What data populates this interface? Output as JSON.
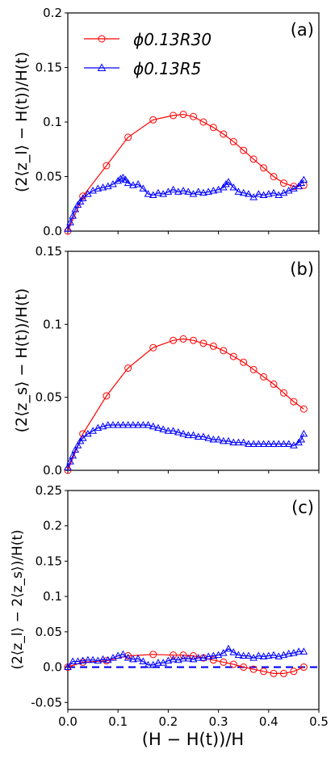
{
  "figure": {
    "xlabel": "(H − H(t))/H",
    "x_ticks": [
      "0.0",
      "0.1",
      "0.2",
      "0.3",
      "0.4",
      "0.5"
    ],
    "x_range": [
      0.0,
      0.5
    ]
  },
  "legend": {
    "series_1_label": "ϕ0.13R30",
    "series_2_label": "ϕ0.13R5",
    "series_1_color": "#ff0000",
    "series_2_color": "#0000ff"
  },
  "chart_data": [
    {
      "type": "line",
      "panel_label": "(a)",
      "ylabel": "(2⟨z_l⟩ − H(t))/H(t)",
      "xlim": [
        0.0,
        0.5
      ],
      "ylim": [
        0.0,
        0.2
      ],
      "y_ticks": [
        "0.0",
        "0.05",
        "0.1",
        "0.15",
        "0.2"
      ],
      "legend_position": "top-left",
      "series": [
        {
          "name": "ϕ0.13R30",
          "color": "#ff0000",
          "marker": "circle",
          "x": [
            0.0,
            0.03,
            0.077,
            0.12,
            0.17,
            0.21,
            0.23,
            0.25,
            0.27,
            0.29,
            0.31,
            0.33,
            0.35,
            0.37,
            0.39,
            0.41,
            0.43,
            0.45,
            0.47
          ],
          "y": [
            0.0,
            0.032,
            0.06,
            0.086,
            0.102,
            0.106,
            0.107,
            0.105,
            0.1,
            0.095,
            0.089,
            0.082,
            0.074,
            0.066,
            0.058,
            0.05,
            0.044,
            0.041,
            0.042
          ]
        },
        {
          "name": "ϕ0.13R5",
          "color": "#0000ff",
          "marker": "triangle",
          "x": [
            0.0,
            0.005,
            0.01,
            0.015,
            0.02,
            0.025,
            0.03,
            0.04,
            0.05,
            0.06,
            0.07,
            0.08,
            0.09,
            0.1,
            0.105,
            0.11,
            0.115,
            0.12,
            0.13,
            0.14,
            0.15,
            0.16,
            0.17,
            0.18,
            0.19,
            0.2,
            0.21,
            0.22,
            0.23,
            0.24,
            0.25,
            0.26,
            0.27,
            0.28,
            0.29,
            0.3,
            0.31,
            0.315,
            0.32,
            0.33,
            0.34,
            0.35,
            0.36,
            0.37,
            0.38,
            0.39,
            0.4,
            0.41,
            0.42,
            0.43,
            0.44,
            0.45,
            0.46,
            0.465,
            0.47
          ],
          "y": [
            0.002,
            0.008,
            0.014,
            0.02,
            0.024,
            0.027,
            0.03,
            0.034,
            0.037,
            0.039,
            0.04,
            0.041,
            0.043,
            0.046,
            0.048,
            0.049,
            0.047,
            0.044,
            0.042,
            0.043,
            0.039,
            0.034,
            0.033,
            0.035,
            0.034,
            0.036,
            0.038,
            0.036,
            0.037,
            0.036,
            0.034,
            0.036,
            0.035,
            0.036,
            0.037,
            0.038,
            0.04,
            0.043,
            0.045,
            0.04,
            0.036,
            0.035,
            0.034,
            0.031,
            0.034,
            0.033,
            0.034,
            0.035,
            0.033,
            0.035,
            0.037,
            0.039,
            0.041,
            0.044,
            0.047
          ]
        }
      ]
    },
    {
      "type": "line",
      "panel_label": "(b)",
      "ylabel": "(2⟨z_s⟩ − H(t))/H(t)",
      "xlim": [
        0.0,
        0.5
      ],
      "ylim": [
        0.0,
        0.15
      ],
      "y_ticks": [
        "0.0",
        "0.05",
        "0.1",
        "0.15"
      ],
      "series": [
        {
          "name": "ϕ0.13R30",
          "color": "#ff0000",
          "marker": "circle",
          "x": [
            0.0,
            0.03,
            0.077,
            0.12,
            0.17,
            0.21,
            0.23,
            0.25,
            0.27,
            0.29,
            0.31,
            0.33,
            0.35,
            0.37,
            0.39,
            0.41,
            0.43,
            0.45,
            0.47
          ],
          "y": [
            0.0,
            0.025,
            0.051,
            0.07,
            0.084,
            0.089,
            0.09,
            0.089,
            0.087,
            0.085,
            0.082,
            0.078,
            0.074,
            0.069,
            0.064,
            0.059,
            0.053,
            0.047,
            0.042
          ]
        },
        {
          "name": "ϕ0.13R5",
          "color": "#0000ff",
          "marker": "triangle",
          "x": [
            0.0,
            0.005,
            0.01,
            0.015,
            0.02,
            0.025,
            0.03,
            0.04,
            0.05,
            0.06,
            0.07,
            0.08,
            0.09,
            0.1,
            0.11,
            0.12,
            0.13,
            0.14,
            0.15,
            0.16,
            0.17,
            0.18,
            0.19,
            0.2,
            0.21,
            0.22,
            0.23,
            0.24,
            0.25,
            0.26,
            0.27,
            0.28,
            0.29,
            0.3,
            0.31,
            0.32,
            0.33,
            0.34,
            0.35,
            0.36,
            0.37,
            0.38,
            0.39,
            0.4,
            0.41,
            0.42,
            0.43,
            0.44,
            0.45,
            0.46,
            0.465,
            0.47
          ],
          "y": [
            0.002,
            0.006,
            0.01,
            0.014,
            0.017,
            0.02,
            0.022,
            0.025,
            0.027,
            0.029,
            0.03,
            0.031,
            0.031,
            0.031,
            0.031,
            0.031,
            0.031,
            0.031,
            0.031,
            0.031,
            0.03,
            0.029,
            0.028,
            0.027,
            0.027,
            0.026,
            0.025,
            0.024,
            0.024,
            0.023,
            0.023,
            0.022,
            0.021,
            0.021,
            0.02,
            0.02,
            0.019,
            0.019,
            0.019,
            0.018,
            0.018,
            0.018,
            0.018,
            0.018,
            0.018,
            0.018,
            0.018,
            0.018,
            0.017,
            0.019,
            0.021,
            0.025
          ]
        }
      ]
    },
    {
      "type": "line",
      "panel_label": "(c)",
      "ylabel": "(2⟨z_l⟩ − 2⟨z_s⟩)/H(t)",
      "xlim": [
        0.0,
        0.5
      ],
      "ylim": [
        -0.06,
        0.25
      ],
      "y_ticks": [
        "-0.05",
        "0.0",
        "0.05",
        "0.1",
        "0.15",
        "0.2",
        "0.25"
      ],
      "series": [
        {
          "name": "ϕ0.13R30",
          "color": "#ff0000",
          "marker": "circle",
          "x": [
            0.0,
            0.03,
            0.077,
            0.12,
            0.17,
            0.21,
            0.23,
            0.25,
            0.27,
            0.29,
            0.31,
            0.33,
            0.35,
            0.37,
            0.39,
            0.41,
            0.43,
            0.45,
            0.47
          ],
          "y": [
            0.0,
            0.007,
            0.009,
            0.016,
            0.018,
            0.017,
            0.017,
            0.016,
            0.013,
            0.01,
            0.007,
            0.004,
            0.0,
            -0.003,
            -0.006,
            -0.009,
            -0.009,
            -0.006,
            0.0
          ]
        },
        {
          "name": "ϕ0.13R5",
          "color": "#0000ff",
          "marker": "triangle",
          "x": [
            0.0,
            0.01,
            0.02,
            0.03,
            0.04,
            0.05,
            0.06,
            0.07,
            0.08,
            0.09,
            0.1,
            0.11,
            0.12,
            0.13,
            0.14,
            0.15,
            0.16,
            0.17,
            0.18,
            0.19,
            0.2,
            0.21,
            0.22,
            0.23,
            0.24,
            0.25,
            0.26,
            0.27,
            0.28,
            0.29,
            0.3,
            0.31,
            0.32,
            0.33,
            0.34,
            0.35,
            0.36,
            0.37,
            0.38,
            0.39,
            0.4,
            0.41,
            0.42,
            0.43,
            0.44,
            0.45,
            0.46,
            0.47
          ],
          "y": [
            0.0,
            0.008,
            0.008,
            0.009,
            0.01,
            0.01,
            0.009,
            0.011,
            0.01,
            0.013,
            0.016,
            0.018,
            0.013,
            0.011,
            0.012,
            0.008,
            0.003,
            0.003,
            0.006,
            0.006,
            0.009,
            0.011,
            0.01,
            0.012,
            0.012,
            0.011,
            0.013,
            0.013,
            0.015,
            0.016,
            0.017,
            0.02,
            0.026,
            0.021,
            0.017,
            0.016,
            0.016,
            0.013,
            0.016,
            0.015,
            0.016,
            0.017,
            0.015,
            0.017,
            0.019,
            0.02,
            0.022,
            0.022
          ]
        }
      ],
      "reference_line": {
        "y": 0.0,
        "style": "dashed",
        "color": "#0000ff"
      }
    }
  ]
}
